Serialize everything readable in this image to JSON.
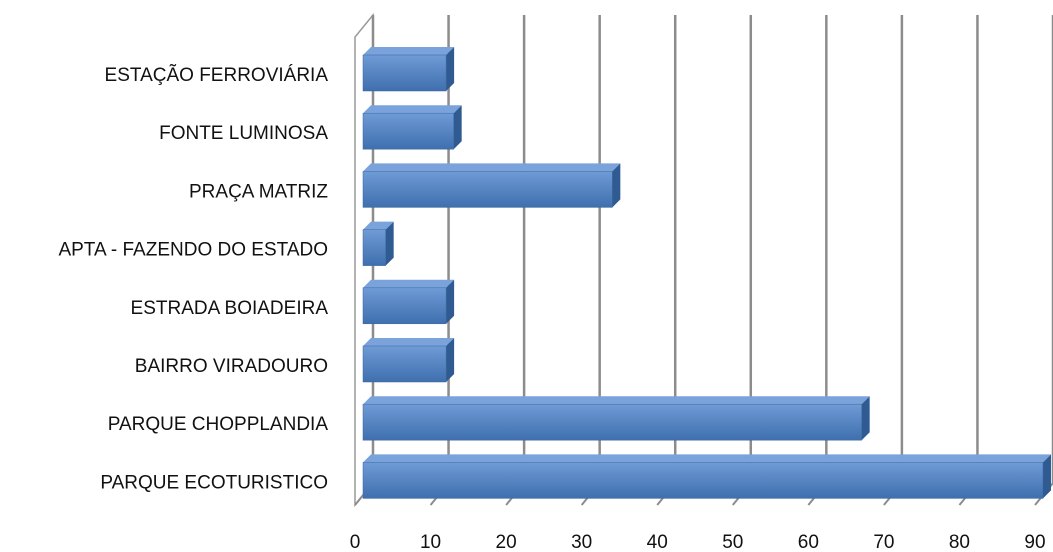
{
  "chart_data": {
    "type": "bar3d",
    "orientation": "horizontal",
    "categories": [
      "ESTAÇÃO FERROVIÁRIA",
      "FONTE LUMINOSA",
      "PRAÇA MATRIZ",
      "APTA - FAZENDO DO ESTADO",
      "ESTRADA BOIADEIRA",
      "BAIRRO VIRADOURO",
      "PARQUE CHOPPLANDIA",
      "PARQUE ECOTURISTICO"
    ],
    "values": [
      11,
      12,
      33,
      3,
      11,
      11,
      66,
      90
    ],
    "color": "#4f81bd",
    "xlim": [
      0,
      90
    ],
    "xticks": [
      0,
      10,
      20,
      30,
      40,
      50,
      60,
      70,
      80,
      90
    ],
    "grid": true
  }
}
